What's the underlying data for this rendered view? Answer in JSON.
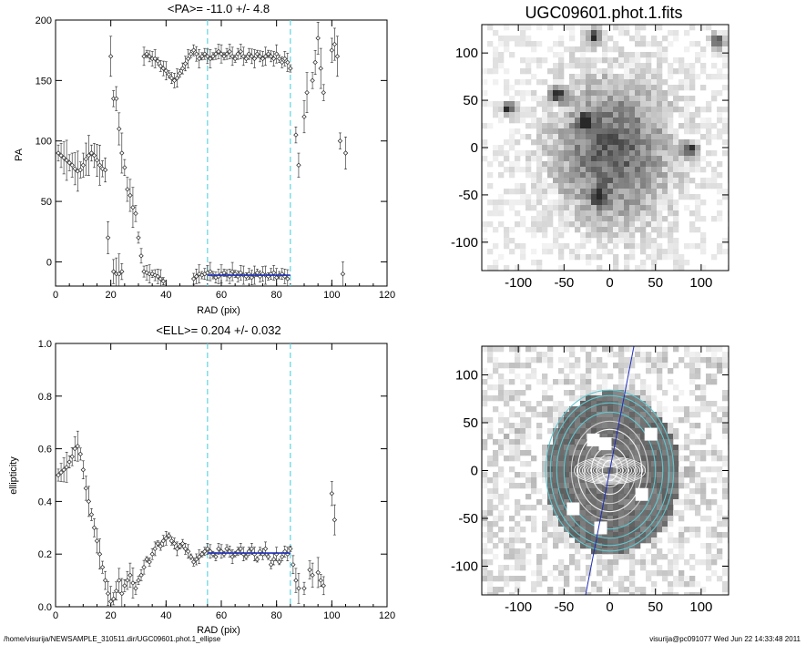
{
  "footer": {
    "left": "/home/visurija/NEWSAMPLE_310511.dir/UGC09601.phot.1_ellipse",
    "right": "visurija@pc091077  Wed Jun 22 14:33:48 2011"
  },
  "colors": {
    "fit_line": "#1f2fb8",
    "dashed": "#5fd3e0",
    "axis": "#000000",
    "isophote": "#5fc7d1"
  },
  "chart_data": [
    {
      "type": "scatter",
      "panel": "pa_profile",
      "title": "<PA>= -11.0 +/-   4.8",
      "xlabel": "RAD (pix)",
      "ylabel": "PA",
      "xlim": [
        0,
        120
      ],
      "ylim": [
        -20,
        200
      ],
      "xticks": [
        0,
        20,
        40,
        60,
        80,
        100,
        120
      ],
      "yticks": [
        0,
        50,
        100,
        150,
        200
      ],
      "vlines": [
        55,
        85
      ],
      "fit": {
        "x": [
          55,
          85
        ],
        "y": [
          -11.0,
          -11.0
        ]
      },
      "points": [
        [
          1,
          90
        ],
        [
          2,
          88
        ],
        [
          3,
          86
        ],
        [
          4,
          84
        ],
        [
          5,
          82
        ],
        [
          6,
          80
        ],
        [
          7,
          77
        ],
        [
          8,
          75
        ],
        [
          9,
          76
        ],
        [
          10,
          80
        ],
        [
          11,
          85
        ],
        [
          12,
          88
        ],
        [
          13,
          90
        ],
        [
          14,
          88
        ],
        [
          15,
          84
        ],
        [
          16,
          80
        ],
        [
          17,
          77
        ],
        [
          18,
          76
        ],
        [
          19,
          20
        ],
        [
          20,
          170
        ],
        [
          21,
          135
        ],
        [
          22,
          135
        ],
        [
          23,
          110
        ],
        [
          24,
          90
        ],
        [
          25,
          78
        ],
        [
          26,
          60
        ],
        [
          27,
          55
        ],
        [
          28,
          45
        ],
        [
          29,
          40
        ],
        [
          30,
          20
        ],
        [
          31,
          5
        ],
        [
          32,
          170
        ],
        [
          33,
          172
        ],
        [
          34,
          170
        ],
        [
          35,
          168
        ],
        [
          36,
          168
        ],
        [
          37,
          166
        ],
        [
          38,
          162
        ],
        [
          39,
          160
        ],
        [
          40,
          158
        ],
        [
          41,
          155
        ],
        [
          42,
          152
        ],
        [
          43,
          150
        ],
        [
          44,
          152
        ],
        [
          45,
          156
        ],
        [
          46,
          160
        ],
        [
          47,
          164
        ],
        [
          48,
          168
        ],
        [
          49,
          172
        ],
        [
          50,
          175
        ],
        [
          51,
          172
        ],
        [
          52,
          168
        ],
        [
          53,
          170
        ],
        [
          54,
          172
        ],
        [
          55,
          170
        ],
        [
          56,
          168
        ],
        [
          57,
          170
        ],
        [
          58,
          172
        ],
        [
          59,
          174
        ],
        [
          60,
          172
        ],
        [
          61,
          170
        ],
        [
          62,
          172
        ],
        [
          63,
          174
        ],
        [
          64,
          170
        ],
        [
          65,
          168
        ],
        [
          66,
          172
        ],
        [
          67,
          174
        ],
        [
          68,
          170
        ],
        [
          69,
          168
        ],
        [
          70,
          172
        ],
        [
          71,
          170
        ],
        [
          72,
          168
        ],
        [
          73,
          172
        ],
        [
          74,
          170
        ],
        [
          75,
          168
        ],
        [
          76,
          170
        ],
        [
          77,
          172
        ],
        [
          78,
          170
        ],
        [
          79,
          168
        ],
        [
          80,
          172
        ],
        [
          81,
          168
        ],
        [
          82,
          165
        ],
        [
          83,
          168
        ],
        [
          84,
          165
        ],
        [
          85,
          160
        ],
        [
          21,
          -8
        ],
        [
          22,
          -10
        ],
        [
          23,
          -10
        ],
        [
          24,
          -8
        ],
        [
          32,
          -8
        ],
        [
          33,
          -9
        ],
        [
          34,
          -10
        ],
        [
          35,
          -10
        ],
        [
          36,
          -11
        ],
        [
          37,
          -12
        ],
        [
          38,
          -14
        ],
        [
          39,
          -16
        ],
        [
          50,
          -14
        ],
        [
          51,
          -12
        ],
        [
          52,
          -10
        ],
        [
          53,
          -11
        ],
        [
          54,
          -10
        ],
        [
          55,
          -9
        ],
        [
          56,
          -8
        ],
        [
          57,
          -11
        ],
        [
          58,
          -13
        ],
        [
          59,
          -12
        ],
        [
          60,
          -10
        ],
        [
          61,
          -9
        ],
        [
          62,
          -11
        ],
        [
          63,
          -12
        ],
        [
          64,
          -8
        ],
        [
          65,
          -10
        ],
        [
          66,
          -12
        ],
        [
          67,
          -9
        ],
        [
          68,
          -11
        ],
        [
          69,
          -12
        ],
        [
          70,
          -10
        ],
        [
          71,
          -13
        ],
        [
          72,
          -11
        ],
        [
          73,
          -9
        ],
        [
          74,
          -12
        ],
        [
          75,
          -10
        ],
        [
          76,
          -11
        ],
        [
          77,
          -12
        ],
        [
          78,
          -10
        ],
        [
          79,
          -9
        ],
        [
          80,
          -13
        ],
        [
          81,
          -11
        ],
        [
          82,
          -10
        ],
        [
          83,
          -12
        ],
        [
          84,
          -14
        ],
        [
          87,
          105
        ],
        [
          88,
          80
        ],
        [
          90,
          120
        ],
        [
          91,
          140
        ],
        [
          93,
          150
        ],
        [
          94,
          165
        ],
        [
          95,
          185
        ],
        [
          96,
          160
        ],
        [
          97,
          140
        ],
        [
          100,
          175
        ],
        [
          101,
          180
        ],
        [
          102,
          170
        ],
        [
          103,
          100
        ],
        [
          104,
          -10
        ],
        [
          105,
          90
        ]
      ]
    },
    {
      "type": "scatter",
      "panel": "ellipticity_profile",
      "title": "<ELL>= 0.204 +/-  0.032",
      "xlabel": "RAD (pix)",
      "ylabel": "ellipticity",
      "xlim": [
        0,
        120
      ],
      "ylim": [
        0,
        1
      ],
      "xticks": [
        0,
        20,
        40,
        60,
        80,
        100,
        120
      ],
      "yticks": [
        0.0,
        0.2,
        0.4,
        0.6,
        0.8,
        1.0
      ],
      "vlines": [
        55,
        85
      ],
      "fit": {
        "x": [
          55,
          85
        ],
        "y": [
          0.204,
          0.204
        ]
      },
      "points": [
        [
          1,
          0.5
        ],
        [
          2,
          0.51
        ],
        [
          3,
          0.52
        ],
        [
          4,
          0.53
        ],
        [
          5,
          0.55
        ],
        [
          6,
          0.57
        ],
        [
          7,
          0.6
        ],
        [
          8,
          0.61
        ],
        [
          9,
          0.58
        ],
        [
          10,
          0.52
        ],
        [
          11,
          0.45
        ],
        [
          12,
          0.4
        ],
        [
          13,
          0.35
        ],
        [
          14,
          0.3
        ],
        [
          15,
          0.25
        ],
        [
          16,
          0.2
        ],
        [
          17,
          0.15
        ],
        [
          18,
          0.1
        ],
        [
          19,
          0.05
        ],
        [
          20,
          0.02
        ],
        [
          21,
          0.03
        ],
        [
          22,
          0.06
        ],
        [
          23,
          0.1
        ],
        [
          24,
          0.05
        ],
        [
          25,
          0.08
        ],
        [
          26,
          0.1
        ],
        [
          27,
          0.12
        ],
        [
          28,
          0.09
        ],
        [
          29,
          0.07
        ],
        [
          30,
          0.1
        ],
        [
          31,
          0.12
        ],
        [
          32,
          0.15
        ],
        [
          33,
          0.18
        ],
        [
          34,
          0.17
        ],
        [
          35,
          0.2
        ],
        [
          36,
          0.22
        ],
        [
          37,
          0.24
        ],
        [
          38,
          0.23
        ],
        [
          39,
          0.25
        ],
        [
          40,
          0.26
        ],
        [
          41,
          0.27
        ],
        [
          42,
          0.25
        ],
        [
          43,
          0.24
        ],
        [
          44,
          0.22
        ],
        [
          45,
          0.23
        ],
        [
          46,
          0.24
        ],
        [
          47,
          0.22
        ],
        [
          48,
          0.21
        ],
        [
          49,
          0.19
        ],
        [
          50,
          0.17
        ],
        [
          51,
          0.18
        ],
        [
          52,
          0.19
        ],
        [
          53,
          0.2
        ],
        [
          54,
          0.21
        ],
        [
          55,
          0.22
        ],
        [
          56,
          0.21
        ],
        [
          57,
          0.2
        ],
        [
          58,
          0.19
        ],
        [
          59,
          0.22
        ],
        [
          60,
          0.21
        ],
        [
          61,
          0.2
        ],
        [
          62,
          0.22
        ],
        [
          63,
          0.21
        ],
        [
          64,
          0.19
        ],
        [
          65,
          0.2
        ],
        [
          66,
          0.21
        ],
        [
          67,
          0.22
        ],
        [
          68,
          0.2
        ],
        [
          69,
          0.19
        ],
        [
          70,
          0.21
        ],
        [
          71,
          0.22
        ],
        [
          72,
          0.2
        ],
        [
          73,
          0.18
        ],
        [
          74,
          0.21
        ],
        [
          75,
          0.2
        ],
        [
          76,
          0.22
        ],
        [
          77,
          0.19
        ],
        [
          78,
          0.16
        ],
        [
          79,
          0.18
        ],
        [
          80,
          0.2
        ],
        [
          81,
          0.17
        ],
        [
          82,
          0.19
        ],
        [
          83,
          0.21
        ],
        [
          84,
          0.2
        ],
        [
          85,
          0.22
        ],
        [
          86,
          0.16
        ],
        [
          87,
          0.1
        ],
        [
          88,
          0.07
        ],
        [
          90,
          0.07
        ],
        [
          92,
          0.14
        ],
        [
          93,
          0.12
        ],
        [
          95,
          0.13
        ],
        [
          96,
          0.1
        ],
        [
          97,
          0.08
        ],
        [
          100,
          0.43
        ],
        [
          101,
          0.33
        ]
      ]
    },
    {
      "type": "heatmap",
      "panel": "galaxy_image",
      "title": "UGC09601.phot.1.fits",
      "xlim": [
        -140,
        130
      ],
      "ylim": [
        -130,
        130
      ],
      "xticks": [
        -100,
        -50,
        0,
        50,
        100
      ],
      "yticks": [
        -100,
        -50,
        0,
        50,
        100
      ],
      "stars": [
        [
          -60,
          60
        ],
        [
          -115,
          45
        ],
        [
          85,
          0
        ],
        [
          -15,
          -50
        ],
        [
          115,
          115
        ],
        [
          -20,
          120
        ],
        [
          -30,
          30
        ]
      ]
    },
    {
      "type": "heatmap",
      "panel": "isophote_overlay",
      "title": "",
      "xlim": [
        -140,
        130
      ],
      "ylim": [
        -130,
        130
      ],
      "xticks": [
        -100,
        -50,
        0,
        50,
        100
      ],
      "yticks": [
        -100,
        -50,
        0,
        50,
        100
      ],
      "major_axis_pa": -11.0,
      "ellipses": [
        [
          70,
          88
        ],
        [
          65,
          82
        ],
        [
          58,
          74
        ],
        [
          50,
          64
        ],
        [
          42,
          54
        ],
        [
          35,
          45
        ],
        [
          28,
          36
        ],
        [
          20,
          26
        ],
        [
          14,
          18
        ],
        [
          8,
          11
        ]
      ]
    }
  ]
}
